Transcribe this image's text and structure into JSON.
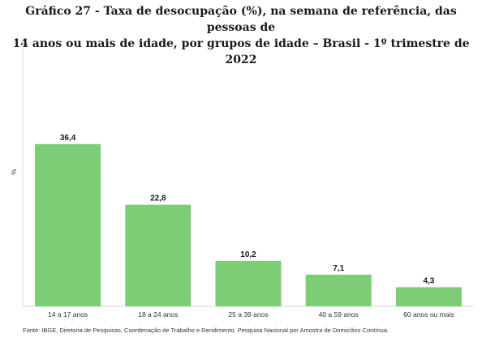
{
  "title_line1": "Gráfico 27 - Taxa de desocupação (%), na semana de referência, das pessoas de",
  "title_line2": "14 anos ou mais de idade, por grupos de idade – Brasil - 1º trimestre de 2022",
  "source": "Fonte: IBGE, Diretoria de Pesquisas, Coordenação de Trabalho e Rendimento, Pesquisa Nacional por Amostra de Domicílios Contínua.",
  "chart_data": {
    "type": "bar",
    "categories": [
      "14 a 17 anos",
      "18 a 24 anos",
      "25 a 39 anos",
      "40 a 59 anos",
      "60 anos ou mais"
    ],
    "values": [
      36.4,
      22.8,
      10.2,
      7.1,
      4.3
    ],
    "data_labels": [
      "36,4",
      "22,8",
      "10,2",
      "7,1",
      "4,3"
    ],
    "ylabel": "%",
    "ylim": [
      0,
      40
    ],
    "bar_color": "#7dcd77",
    "grid": false,
    "legend": "none"
  }
}
